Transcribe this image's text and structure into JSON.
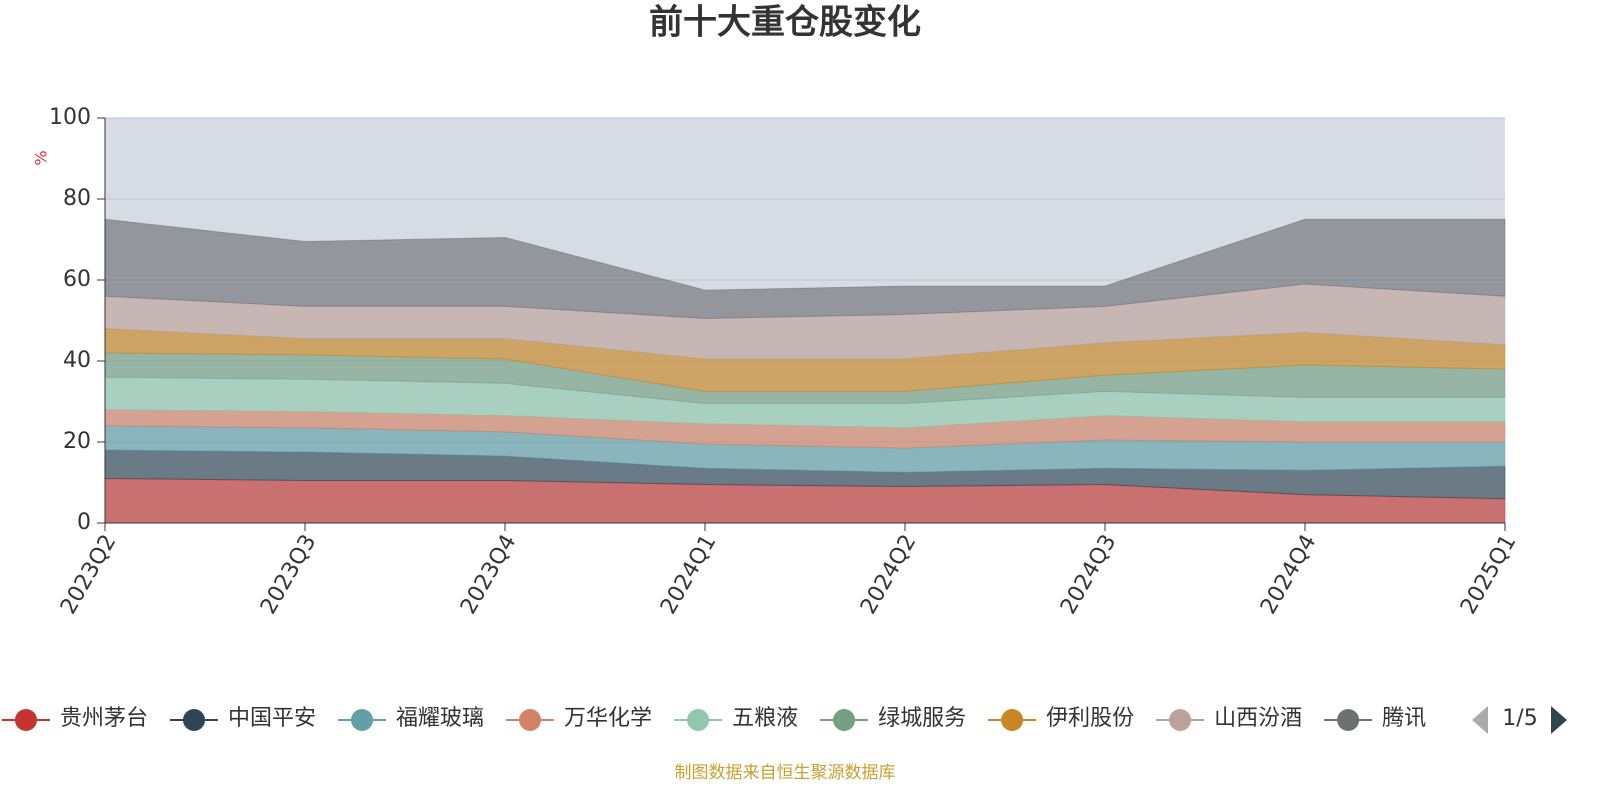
{
  "chart_data": {
    "type": "stacked_area",
    "title": "前十大重仓股变化",
    "y_label": "%",
    "source": "制图数据来自恒生聚源数据库",
    "legend_page": "1/5",
    "categories": [
      "2023Q2",
      "2023Q3",
      "2023Q4",
      "2024Q1",
      "2024Q2",
      "2024Q3",
      "2024Q4",
      "2025Q1"
    ],
    "ylim": [
      0,
      100
    ],
    "yticks": [
      0,
      20,
      40,
      60,
      80,
      100
    ],
    "grid": true,
    "series": [
      {
        "name": "贵州茅台",
        "color": "#c23531",
        "values": [
          11,
          10.5,
          10.5,
          9.5,
          9,
          9.5,
          7,
          6
        ]
      },
      {
        "name": "中国平安",
        "color": "#2f4554",
        "values": [
          7,
          7,
          6,
          4,
          3.5,
          4,
          6,
          8
        ]
      },
      {
        "name": "福耀玻璃",
        "color": "#61a0a8",
        "values": [
          6,
          6,
          6,
          6,
          6,
          7,
          7,
          6
        ]
      },
      {
        "name": "万华化学",
        "color": "#d48265",
        "values": [
          4,
          4,
          4,
          5,
          5,
          6,
          5,
          5
        ]
      },
      {
        "name": "五粮液",
        "color": "#91c7ae",
        "values": [
          8,
          8,
          8,
          5,
          6,
          6,
          6,
          6
        ]
      },
      {
        "name": "绿城服务",
        "color": "#749f83",
        "values": [
          6,
          6,
          6,
          3,
          3,
          4,
          8,
          7
        ]
      },
      {
        "name": "伊利股份",
        "color": "#ca8622",
        "values": [
          6,
          4,
          5,
          8,
          8,
          8,
          8,
          6
        ]
      },
      {
        "name": "山西汾酒",
        "color": "#bda29a",
        "values": [
          8,
          8,
          8,
          10,
          11,
          9,
          12,
          12
        ]
      },
      {
        "name": "腾讯",
        "color": "#6e7074",
        "values": [
          19,
          16,
          17,
          7,
          7,
          5,
          16,
          19
        ]
      }
    ]
  }
}
